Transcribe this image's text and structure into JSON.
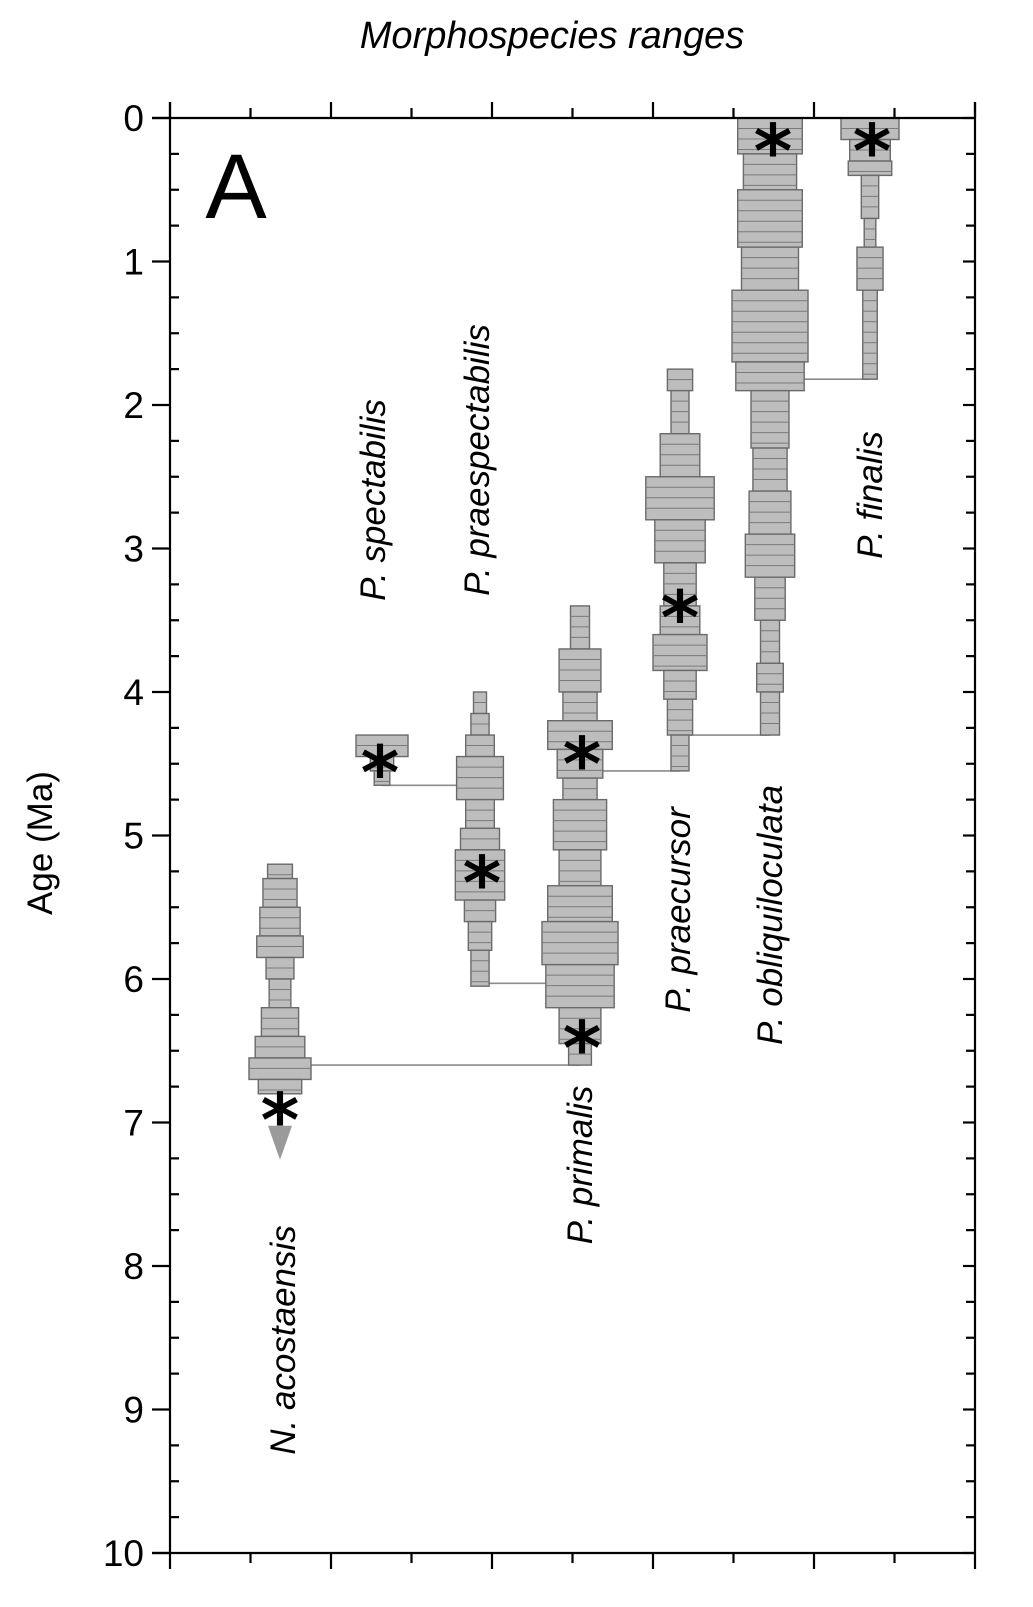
{
  "chart_data": {
    "type": "range-chart",
    "title": "Morphospecies ranges",
    "panel_label": "A",
    "ylabel": "Age (Ma)",
    "ylim": [
      0,
      10
    ],
    "y_inverted": true,
    "yticks": [
      "0",
      "1",
      "2",
      "3",
      "4",
      "5",
      "6",
      "7",
      "8",
      "9",
      "10"
    ],
    "grid": false,
    "species": [
      {
        "name": "N. acostaensis",
        "range": [
          5.2,
          6.8
        ],
        "extends_older": true,
        "star_age": 6.8,
        "profile": [
          [
            5.2,
            5.3,
            0.4
          ],
          [
            5.3,
            5.5,
            0.55
          ],
          [
            5.5,
            5.7,
            0.65
          ],
          [
            5.7,
            5.85,
            0.75
          ],
          [
            5.85,
            6.0,
            0.45
          ],
          [
            6.0,
            6.2,
            0.35
          ],
          [
            6.2,
            6.4,
            0.6
          ],
          [
            6.4,
            6.55,
            0.8
          ],
          [
            6.55,
            6.7,
            1.0
          ],
          [
            6.7,
            6.8,
            0.7
          ]
        ]
      },
      {
        "name": "P. spectabilis",
        "range": [
          4.3,
          4.65
        ],
        "star_age": 4.38,
        "profile": [
          [
            4.3,
            4.45,
            1.0
          ],
          [
            4.45,
            4.55,
            0.45
          ],
          [
            4.55,
            4.65,
            0.3
          ]
        ]
      },
      {
        "name": "P. praespectabilis",
        "range": [
          4.0,
          6.05
        ],
        "star_age": 5.15,
        "profile": [
          [
            4.0,
            4.15,
            0.25
          ],
          [
            4.15,
            4.3,
            0.35
          ],
          [
            4.3,
            4.45,
            0.55
          ],
          [
            4.45,
            4.75,
            0.9
          ],
          [
            4.75,
            4.95,
            0.55
          ],
          [
            4.95,
            5.1,
            0.75
          ],
          [
            5.1,
            5.45,
            0.95
          ],
          [
            5.45,
            5.6,
            0.6
          ],
          [
            5.6,
            5.8,
            0.45
          ],
          [
            5.8,
            6.05,
            0.35
          ]
        ]
      },
      {
        "name": "P. primalis",
        "range": [
          3.4,
          6.6
        ],
        "star_age": 4.32,
        "star_age_2": 6.3,
        "profile": [
          [
            3.4,
            3.7,
            0.25
          ],
          [
            3.7,
            4.0,
            0.55
          ],
          [
            4.0,
            4.2,
            0.45
          ],
          [
            4.2,
            4.4,
            0.85
          ],
          [
            4.4,
            4.6,
            0.6
          ],
          [
            4.6,
            4.75,
            0.45
          ],
          [
            4.75,
            5.1,
            0.7
          ],
          [
            5.1,
            5.35,
            0.55
          ],
          [
            5.35,
            5.6,
            0.85
          ],
          [
            5.6,
            5.9,
            1.0
          ],
          [
            5.9,
            6.2,
            0.9
          ],
          [
            6.2,
            6.45,
            0.55
          ],
          [
            6.45,
            6.6,
            0.3
          ]
        ]
      },
      {
        "name": "P. praecursor",
        "range": [
          1.75,
          4.55
        ],
        "star_age": 3.3,
        "profile": [
          [
            1.75,
            1.9,
            0.35
          ],
          [
            1.9,
            2.2,
            0.25
          ],
          [
            2.2,
            2.5,
            0.55
          ],
          [
            2.5,
            2.8,
            0.95
          ],
          [
            2.8,
            3.1,
            0.7
          ],
          [
            3.1,
            3.4,
            0.45
          ],
          [
            3.4,
            3.6,
            0.55
          ],
          [
            3.6,
            3.85,
            0.75
          ],
          [
            3.85,
            4.05,
            0.45
          ],
          [
            4.05,
            4.3,
            0.35
          ],
          [
            4.3,
            4.55,
            0.25
          ]
        ]
      },
      {
        "name": "P. obliquiloculata",
        "range": [
          0.0,
          4.3
        ],
        "star_age": 0.05,
        "profile": [
          [
            0.0,
            0.25,
            0.85
          ],
          [
            0.25,
            0.5,
            0.7
          ],
          [
            0.5,
            0.9,
            0.85
          ],
          [
            0.9,
            1.2,
            0.75
          ],
          [
            1.2,
            1.7,
            1.0
          ],
          [
            1.7,
            1.9,
            0.9
          ],
          [
            1.9,
            2.3,
            0.5
          ],
          [
            2.3,
            2.6,
            0.45
          ],
          [
            2.6,
            2.9,
            0.55
          ],
          [
            2.9,
            3.2,
            0.65
          ],
          [
            3.2,
            3.5,
            0.4
          ],
          [
            3.5,
            3.8,
            0.25
          ],
          [
            3.8,
            4.0,
            0.35
          ],
          [
            4.0,
            4.3,
            0.25
          ]
        ]
      },
      {
        "name": "P. finalis",
        "range": [
          0.0,
          1.82
        ],
        "star_age": 0.05,
        "profile": [
          [
            0.0,
            0.15,
            1.0
          ],
          [
            0.15,
            0.3,
            0.7
          ],
          [
            0.3,
            0.4,
            0.75
          ],
          [
            0.4,
            0.7,
            0.3
          ],
          [
            0.7,
            0.9,
            0.2
          ],
          [
            0.9,
            1.2,
            0.45
          ],
          [
            1.2,
            1.82,
            0.25
          ]
        ]
      }
    ],
    "connections": [
      {
        "from": "N. acostaensis",
        "to": "P. primalis",
        "age": 6.6
      },
      {
        "from": "P. spectabilis",
        "to": "P. praespectabilis",
        "age": 4.65
      },
      {
        "from": "P. praespectabilis",
        "to": "P. primalis",
        "age": 6.03
      },
      {
        "from": "P. primalis",
        "to": "P. praecursor",
        "age": 4.55
      },
      {
        "from": "P. praecursor",
        "to": "P. obliquiloculata",
        "age": 4.3
      },
      {
        "from": "P. obliquiloculata",
        "to": "P. finalis",
        "age": 1.82
      }
    ]
  }
}
